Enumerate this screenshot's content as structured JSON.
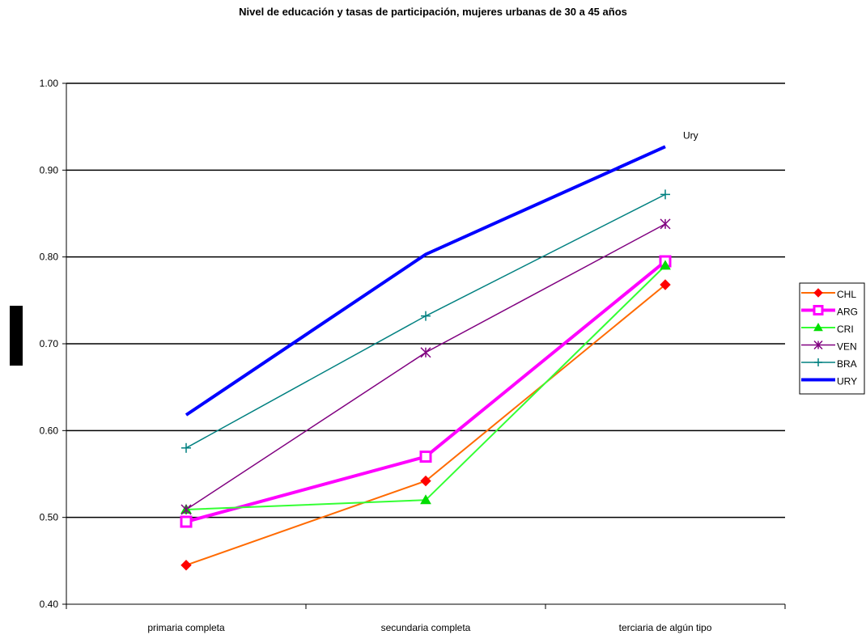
{
  "chart_data": {
    "type": "line",
    "title": "Nivel de educación y tasas de participación, mujeres urbanas de 30 a 45 años",
    "xlabel": "",
    "ylabel": "",
    "categories": [
      "primaria completa",
      "secundaria completa",
      "terciaria de algún tipo"
    ],
    "ylim": [
      0.4,
      1.0
    ],
    "yticks": [
      "0.40",
      "0.50",
      "0.60",
      "0.70",
      "0.80",
      "0.90",
      "1.00"
    ],
    "grid": true,
    "legend_position": "right",
    "series": [
      {
        "name": "CHL",
        "values": [
          0.445,
          0.542,
          0.768
        ],
        "color": "#ff6a00",
        "marker": "diamond",
        "marker_color": "#ff0000",
        "width": 2
      },
      {
        "name": "ARG",
        "values": [
          0.495,
          0.57,
          0.795
        ],
        "color": "#ff00ff",
        "marker": "square",
        "marker_color": "#ff00ff",
        "width": 4
      },
      {
        "name": "CRI",
        "values": [
          0.509,
          0.52,
          0.79
        ],
        "color": "#33ff33",
        "marker": "triangle",
        "marker_color": "#00dd00",
        "width": 2
      },
      {
        "name": "VEN",
        "values": [
          0.509,
          0.69,
          0.838
        ],
        "color": "#800080",
        "marker": "star",
        "marker_color": "#800080",
        "width": 1.5
      },
      {
        "name": "BRA",
        "values": [
          0.58,
          0.732,
          0.872
        ],
        "color": "#008080",
        "marker": "plus",
        "marker_color": "#008080",
        "width": 1.5
      },
      {
        "name": "URY",
        "values": [
          0.618,
          0.803,
          0.927
        ],
        "color": "#0000ff",
        "marker": "none",
        "marker_color": "#0000ff",
        "width": 4
      }
    ],
    "annotations": [
      {
        "text": "Ury"
      }
    ]
  }
}
